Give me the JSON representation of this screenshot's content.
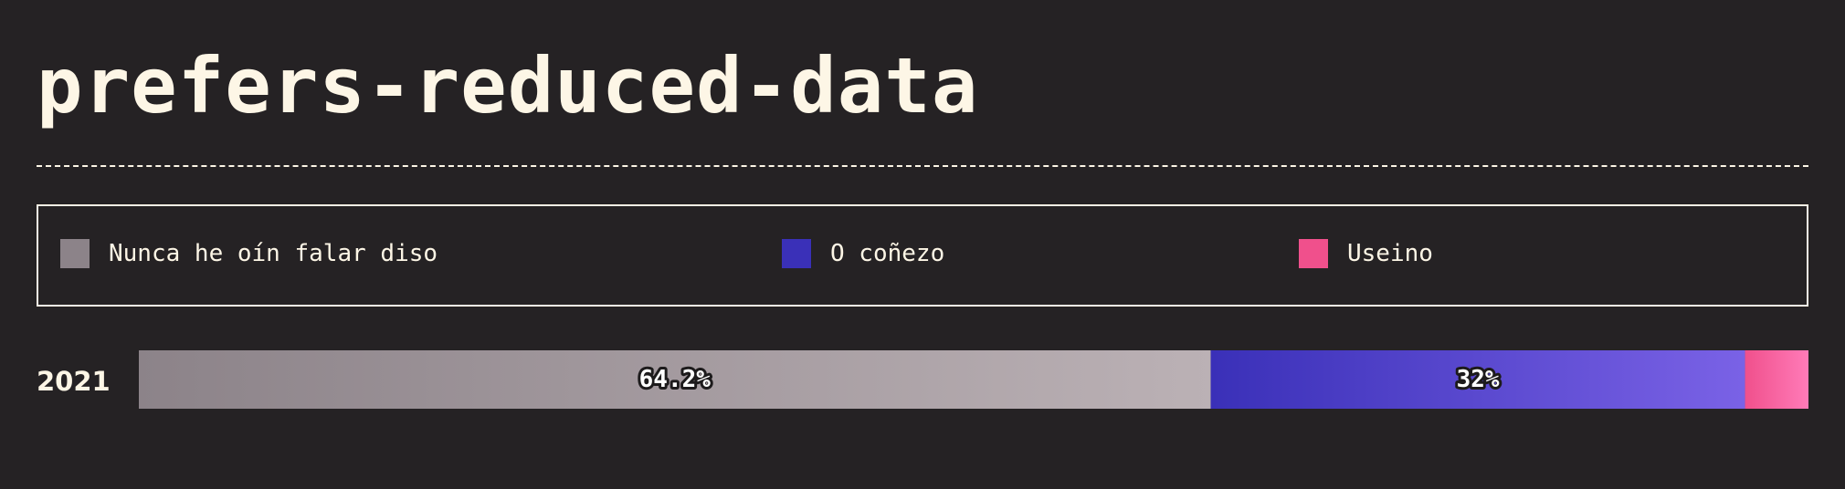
{
  "title": "prefers-reduced-data",
  "legend": [
    {
      "label": "Nunca he oín falar diso",
      "color": "#8c8389"
    },
    {
      "label": "O coñezo",
      "color": "#3a30b8"
    },
    {
      "label": "Useino",
      "color": "#f0508c"
    }
  ],
  "chart_data": {
    "type": "bar",
    "orientation": "horizontal-stacked",
    "categories": [
      "2021"
    ],
    "series": [
      {
        "name": "Nunca he oín falar diso",
        "values": [
          64.2
        ],
        "label": "64.2%",
        "color": "#8c8389",
        "color_end": "#bbb1b5"
      },
      {
        "name": "O coñezo",
        "values": [
          32
        ],
        "label": "32%",
        "color": "#3a30b8",
        "color_end": "#7a62e6"
      },
      {
        "name": "Useino",
        "values": [
          3.8
        ],
        "label": "",
        "color": "#f0508c",
        "color_end": "#ff7bb8"
      }
    ],
    "xlim": [
      0,
      100
    ],
    "grid": false,
    "legend_position": "top"
  }
}
